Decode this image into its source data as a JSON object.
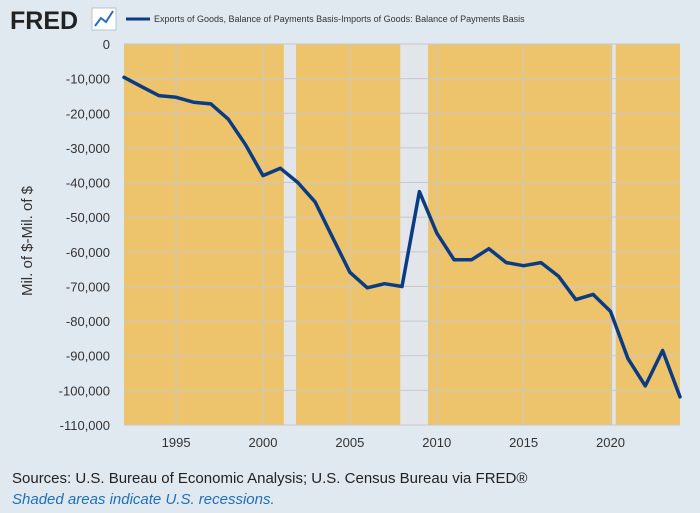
{
  "header": {
    "logo_text": "FRED",
    "logo_icon": "line-chart-icon"
  },
  "colors": {
    "background": "#e1e9f0",
    "plot_fill": "#edc36b",
    "recession_fill": "#e2e6ea",
    "line": "#0b3c83",
    "grid": "#c8c8c8",
    "text": "#333333",
    "note": "#1f6fb8"
  },
  "footer": {
    "sources": "Sources: U.S. Bureau of Economic Analysis; U.S. Census Bureau via FRED®",
    "note": "Shaded areas indicate U.S. recessions."
  },
  "chart_data": {
    "type": "line",
    "title": "",
    "legend": "Exports of Goods, Balance of Payments Basis-Imports of Goods: Balance of Payments Basis",
    "xlabel": "",
    "ylabel": "Mil. of $-Mil. of $",
    "xlim": [
      1992,
      2024
    ],
    "ylim": [
      -110000,
      0
    ],
    "yticks": [
      0,
      -10000,
      -20000,
      -30000,
      -40000,
      -50000,
      -60000,
      -70000,
      -80000,
      -90000,
      -100000,
      -110000
    ],
    "ytick_labels": [
      "0",
      "-10,000",
      "-20,000",
      "-30,000",
      "-40,000",
      "-50,000",
      "-60,000",
      "-70,000",
      "-80,000",
      "-90,000",
      "-100,000",
      "-110,000"
    ],
    "xticks": [
      1995,
      2000,
      2005,
      2010,
      2015,
      2020
    ],
    "xtick_labels": [
      "1995",
      "2000",
      "2005",
      "2010",
      "2015",
      "2020"
    ],
    "recessions": [
      [
        2001.2,
        2001.9
      ],
      [
        2007.9,
        2009.5
      ],
      [
        2020.1,
        2020.3
      ]
    ],
    "series": [
      {
        "name": "Exports of Goods, Balance of Payments Basis-Imports of Goods: Balance of Payments Basis",
        "x": [
          1992,
          1993,
          1994,
          1995,
          1996,
          1997,
          1998,
          1999,
          2000,
          2001,
          2002,
          2003,
          2004,
          2005,
          2006,
          2007,
          2008,
          2009,
          2010,
          2011,
          2012,
          2013,
          2014,
          2015,
          2016,
          2017,
          2018,
          2019,
          2020,
          2021,
          2022,
          2023,
          2024
        ],
        "values": [
          -9600,
          -12300,
          -14900,
          -15400,
          -16800,
          -17300,
          -21700,
          -29100,
          -38000,
          -35900,
          -40000,
          -45600,
          -55800,
          -65900,
          -70400,
          -69200,
          -70000,
          -42600,
          -54600,
          -62300,
          -62300,
          -59100,
          -63100,
          -64000,
          -63100,
          -67000,
          -73800,
          -72300,
          -77200,
          -90800,
          -98700,
          -88500,
          -101900
        ]
      }
    ]
  }
}
